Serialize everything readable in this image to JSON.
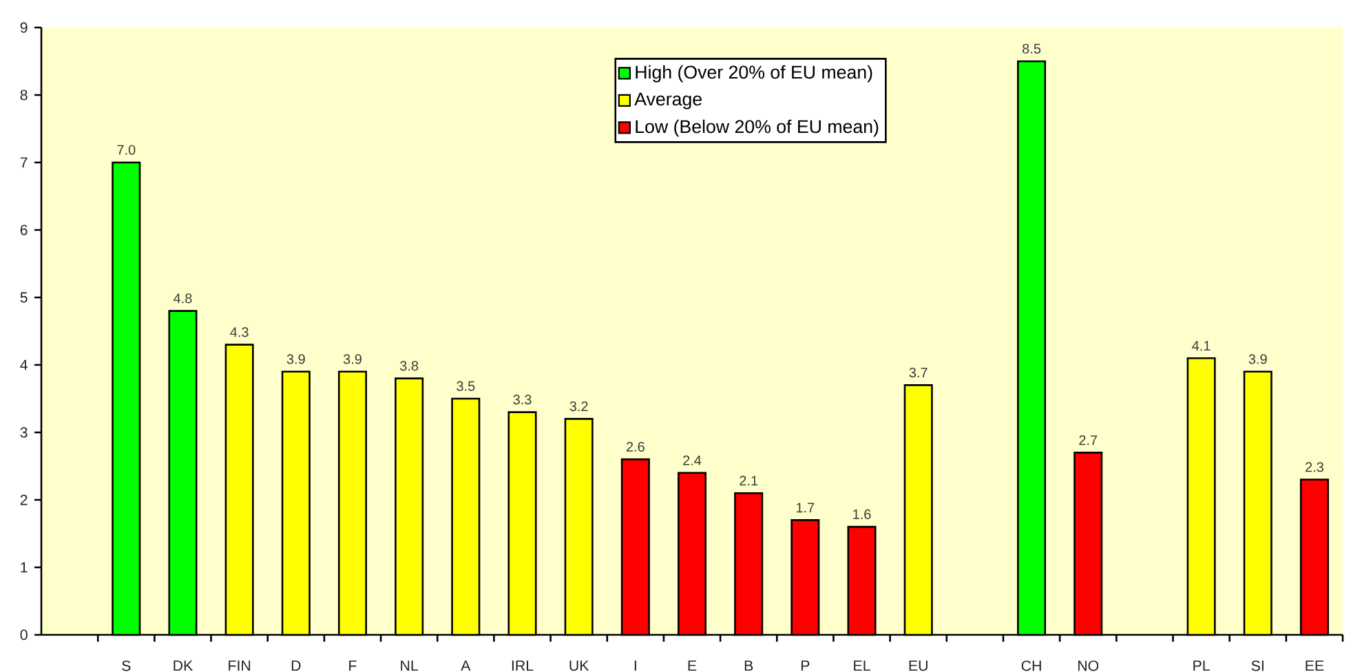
{
  "chart_data": {
    "type": "bar",
    "categories": [
      null,
      "S",
      "DK",
      "FIN",
      "D",
      "F",
      "NL",
      "A",
      "IRL",
      "UK",
      "I",
      "E",
      "B",
      "P",
      "EL",
      "EU",
      null,
      "CH",
      "NO",
      null,
      "PL",
      "SI",
      "EE"
    ],
    "series": [
      {
        "name": "High (Over 20% of EU mean)",
        "color": "#00ff00",
        "values": [
          null,
          7.0,
          4.8,
          null,
          null,
          null,
          null,
          null,
          null,
          null,
          null,
          null,
          null,
          null,
          null,
          null,
          null,
          8.5,
          null,
          null,
          null,
          null,
          null
        ],
        "value_labels": [
          null,
          "7.0",
          "4.8",
          null,
          null,
          null,
          null,
          null,
          null,
          null,
          null,
          null,
          null,
          null,
          null,
          null,
          null,
          "8.5",
          null,
          null,
          null,
          null,
          null
        ]
      },
      {
        "name": "Average",
        "color": "#ffff00",
        "values": [
          null,
          null,
          null,
          4.3,
          3.9,
          3.9,
          3.8,
          3.5,
          3.3,
          3.2,
          null,
          null,
          null,
          null,
          null,
          3.7,
          null,
          null,
          null,
          null,
          4.1,
          3.9,
          null
        ],
        "value_labels": [
          null,
          null,
          null,
          "4.3",
          "3.9",
          "3.9",
          "3.8",
          "3.5",
          "3.3",
          "3.2",
          null,
          null,
          null,
          null,
          null,
          "3.7",
          null,
          null,
          null,
          null,
          "4.1",
          "3.9",
          null
        ]
      },
      {
        "name": "Low (Below 20% of EU mean)",
        "color": "#ff0000",
        "values": [
          null,
          null,
          null,
          null,
          null,
          null,
          null,
          null,
          null,
          null,
          2.6,
          2.4,
          2.1,
          1.7,
          1.6,
          null,
          null,
          null,
          2.7,
          null,
          null,
          null,
          2.3
        ],
        "value_labels": [
          null,
          null,
          null,
          null,
          null,
          null,
          null,
          null,
          null,
          null,
          "2.6",
          "2.4",
          "2.1",
          "1.7",
          "1.6",
          null,
          null,
          null,
          "2.7",
          null,
          null,
          null,
          "2.3"
        ]
      }
    ],
    "ylim": [
      0,
      9
    ],
    "yticks": [
      0,
      1,
      2,
      3,
      4,
      5,
      6,
      7,
      8,
      9
    ],
    "legend": "top"
  }
}
